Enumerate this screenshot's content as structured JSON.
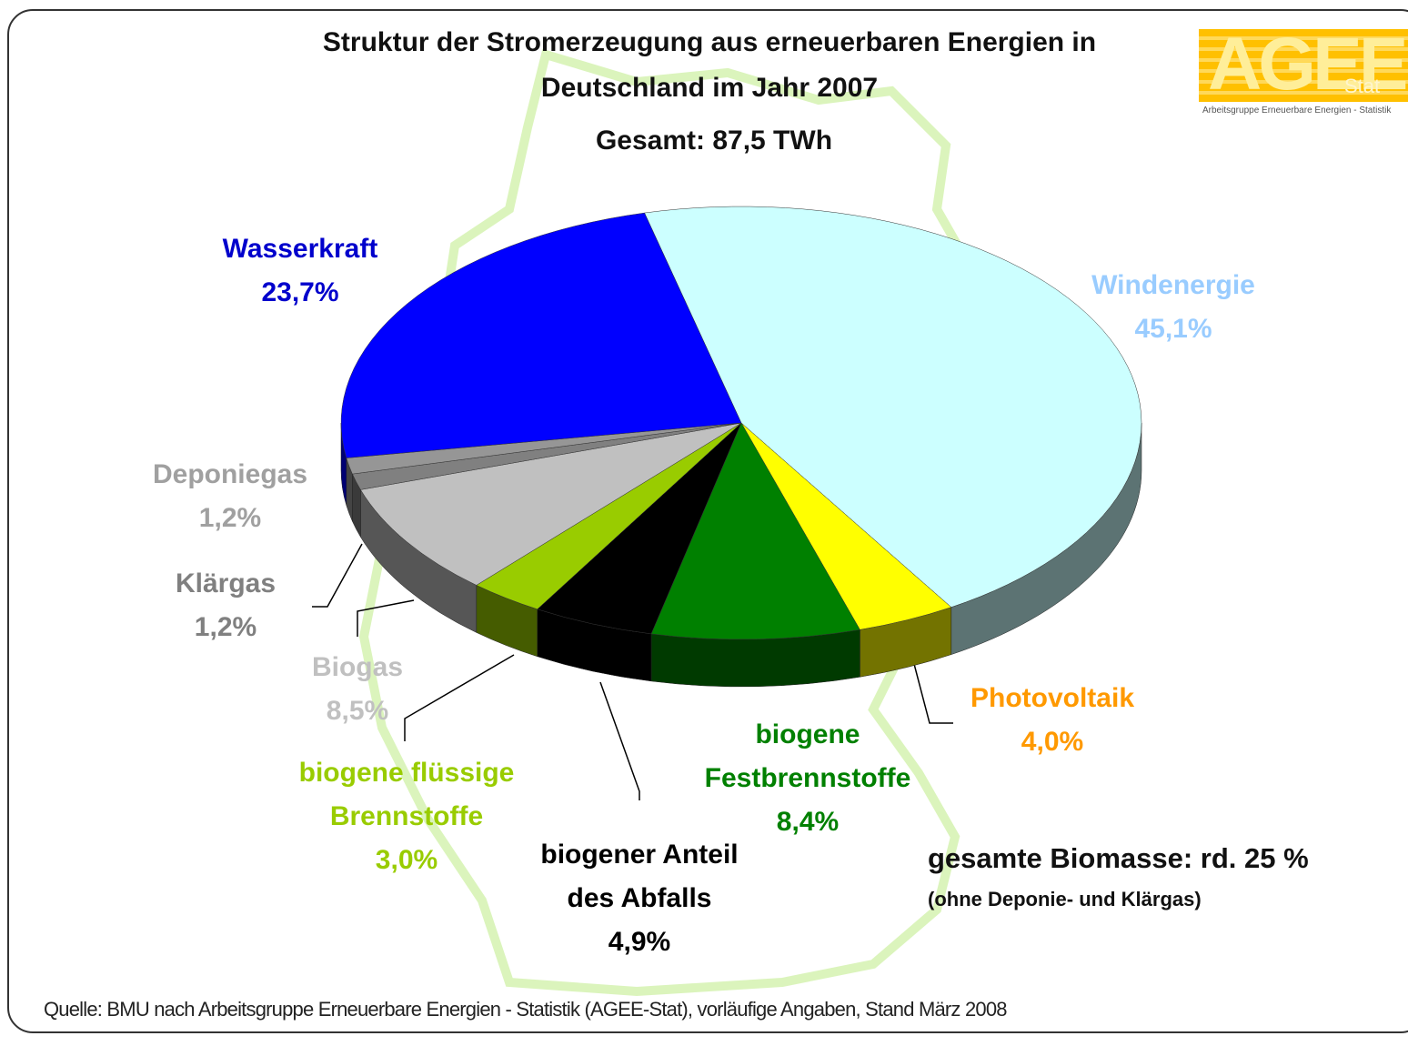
{
  "chart_data": {
    "type": "pie",
    "title": "Struktur der Stromerzeugung aus erneuerbaren Energien in Deutschland im Jahr 2007",
    "subtitle": "Gesamt: 87,5 TWh",
    "categories": [
      "Windenergie",
      "Photovoltaik",
      "biogene Festbrennstoffe",
      "biogener Anteil des Abfalls",
      "biogene flüssige Brennstoffe",
      "Biogas",
      "Klärgas",
      "Deponiegas",
      "Wasserkraft"
    ],
    "values": [
      45.1,
      4.0,
      8.4,
      4.9,
      3.0,
      8.5,
      1.2,
      1.2,
      23.7
    ],
    "value_labels": [
      "45,1%",
      "4,0%",
      "8,4%",
      "4,9%",
      "3,0%",
      "8,5%",
      "1,2%",
      "1,2%",
      "23,7%"
    ],
    "colors": [
      "#ccffff",
      "#ffff00",
      "#008000",
      "#000000",
      "#99cc00",
      "#c0c0c0",
      "#808080",
      "#969696",
      "#0000ff"
    ],
    "label_colors": [
      "#99ccff",
      "#ff9900",
      "#008000",
      "#000000",
      "#99cc00",
      "#c0c0c0",
      "#808080",
      "#a0a0a0",
      "#0000cc"
    ],
    "annotations": [
      "gesamte Biomasse: rd. 25 %",
      "(ohne Deponie- und Klärgas)"
    ],
    "source": "Quelle: BMU nach Arbeitsgruppe Erneuerbare Energien - Statistik (AGEE-Stat), vorläufige Angaben, Stand März 2008",
    "logo": "AGEE",
    "logo_sub": "Stat",
    "logo_caption": "Arbeitsgruppe Erneuerbare Energien - Statistik"
  }
}
